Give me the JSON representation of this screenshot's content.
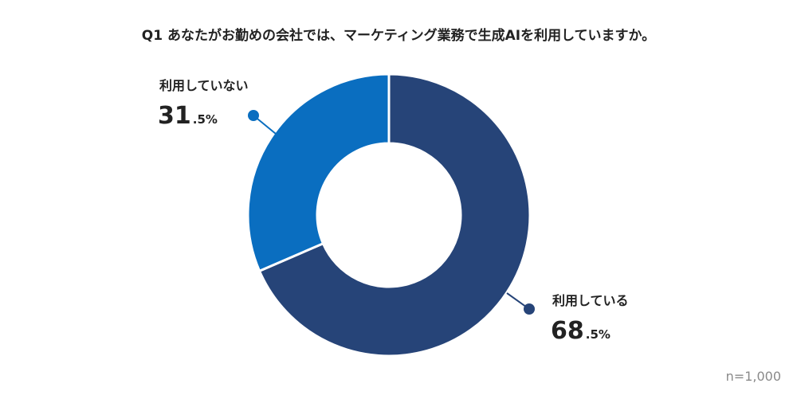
{
  "chart_data": {
    "type": "pie",
    "title": "Q1 あなたがお勤めの会社では、マーケティング業務で生成AIを利用していますか。",
    "categories": [
      "利用している",
      "利用していない"
    ],
    "values": [
      68.5,
      31.5
    ],
    "value_labels": [
      {
        "int": "68",
        "dec": ".5%"
      },
      {
        "int": "31",
        "dec": ".5%"
      }
    ],
    "colors": [
      "#264478",
      "#0a6ec0"
    ],
    "donut": true,
    "sample_size": "n=1,000"
  }
}
